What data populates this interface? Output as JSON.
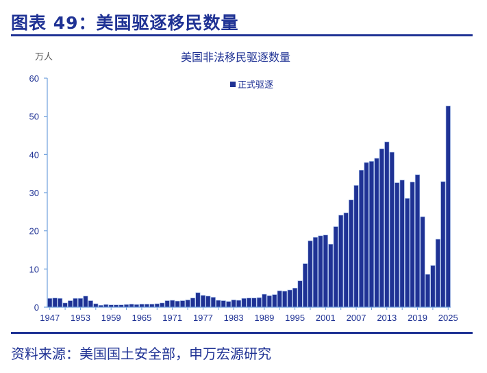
{
  "figure": {
    "title": "图表 49：美国驱逐移民数量",
    "source": "资料来源：美国国土安全部，申万宏源研究"
  },
  "colors": {
    "bar": "#1f3294",
    "bar_edge": "#9db8e8",
    "axis": "#6fa0dc",
    "text": "#1f3294"
  },
  "chart_data": {
    "type": "bar",
    "title": "美国非法移民驱逐数量",
    "ylabel": "万人",
    "xlabel": "",
    "ylim": [
      0,
      60
    ],
    "yticks": [
      0,
      10,
      20,
      30,
      40,
      50,
      60
    ],
    "xtick_labels": [
      "1947",
      "1953",
      "1959",
      "1965",
      "1971",
      "1977",
      "1983",
      "1989",
      "1995",
      "2001",
      "2007",
      "2013",
      "2019",
      "2025"
    ],
    "legend": [
      "正式驱逐"
    ],
    "grid": false,
    "categories": [
      "1947",
      "1948",
      "1949",
      "1950",
      "1951",
      "1952",
      "1953",
      "1954",
      "1955",
      "1956",
      "1957",
      "1958",
      "1959",
      "1960",
      "1961",
      "1962",
      "1963",
      "1964",
      "1965",
      "1966",
      "1967",
      "1968",
      "1969",
      "1970",
      "1971",
      "1972",
      "1973",
      "1974",
      "1975",
      "1976",
      "1977",
      "1978",
      "1979",
      "1980",
      "1981",
      "1982",
      "1983",
      "1984",
      "1985",
      "1986",
      "1987",
      "1988",
      "1989",
      "1990",
      "1991",
      "1992",
      "1993",
      "1994",
      "1995",
      "1996",
      "1997",
      "1998",
      "1999",
      "2000",
      "2001",
      "2002",
      "2003",
      "2004",
      "2005",
      "2006",
      "2007",
      "2008",
      "2009",
      "2010",
      "2011",
      "2012",
      "2013",
      "2014",
      "2015",
      "2016",
      "2017",
      "2018",
      "2019",
      "2020",
      "2021",
      "2022",
      "2023",
      "2024",
      "2025"
    ],
    "series": [
      {
        "name": "正式驱逐",
        "values": [
          2.3,
          2.4,
          2.3,
          1.1,
          1.7,
          2.3,
          2.3,
          2.9,
          1.7,
          0.9,
          0.5,
          0.7,
          0.6,
          0.6,
          0.6,
          0.7,
          0.8,
          0.7,
          0.8,
          0.8,
          0.8,
          0.9,
          1.1,
          1.7,
          1.8,
          1.6,
          1.7,
          1.9,
          2.4,
          3.8,
          3.1,
          2.9,
          2.6,
          1.8,
          1.7,
          1.5,
          1.9,
          1.8,
          2.3,
          2.4,
          2.4,
          2.5,
          3.4,
          3.0,
          3.3,
          4.3,
          4.2,
          4.5,
          5.0,
          6.9,
          11.4,
          17.4,
          18.3,
          18.7,
          18.9,
          16.5,
          21.1,
          24.1,
          24.7,
          28.1,
          31.9,
          35.9,
          37.9,
          38.2,
          39.0,
          41.5,
          43.3,
          40.6,
          32.6,
          33.3,
          28.5,
          32.8,
          34.7,
          23.7,
          8.6,
          10.9,
          17.8,
          32.9,
          52.7
        ]
      }
    ]
  }
}
